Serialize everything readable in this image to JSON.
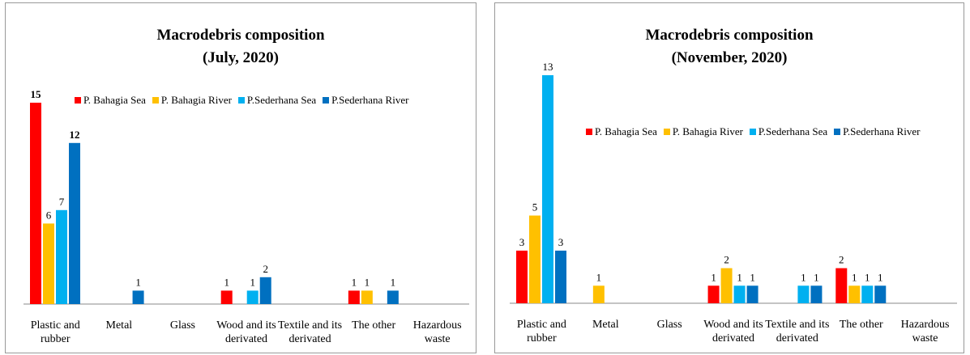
{
  "chart_data": [
    {
      "type": "bar",
      "title": "Macrodebris composition",
      "subtitle": "(July, 2020)",
      "categories": [
        "Plastic and rubber",
        "Metal",
        "Glass",
        "Wood and its derivated",
        "Textile and its derivated",
        "The other",
        "Hazardous waste"
      ],
      "series": [
        {
          "name": "P. Bahagia Sea",
          "color": "#ff0000",
          "values": [
            15,
            0,
            0,
            1,
            0,
            1,
            0
          ]
        },
        {
          "name": "P. Bahagia River",
          "color": "#ffc000",
          "values": [
            6,
            0,
            0,
            0,
            0,
            1,
            0
          ]
        },
        {
          "name": "P.Sederhana Sea",
          "color": "#00b0f0",
          "values": [
            7,
            0,
            0,
            1,
            0,
            0,
            0
          ]
        },
        {
          "name": "P.Sederhana River",
          "color": "#0070c0",
          "values": [
            12,
            1,
            0,
            2,
            0,
            1,
            0
          ]
        }
      ]
    },
    {
      "type": "bar",
      "title": "Macrodebris composition",
      "subtitle": "(November, 2020)",
      "categories": [
        "Plastic and rubber",
        "Metal",
        "Glass",
        "Wood and its derivated",
        "Textile and its derivated",
        "The other",
        "Hazardous waste"
      ],
      "series": [
        {
          "name": "P. Bahagia Sea",
          "color": "#ff0000",
          "values": [
            3,
            0,
            0,
            1,
            0,
            2,
            0
          ]
        },
        {
          "name": "P. Bahagia River",
          "color": "#ffc000",
          "values": [
            5,
            1,
            0,
            2,
            0,
            1,
            0
          ]
        },
        {
          "name": "P.Sederhana Sea",
          "color": "#00b0f0",
          "values": [
            13,
            0,
            0,
            1,
            1,
            1,
            0
          ]
        },
        {
          "name": "P.Sederhana River",
          "color": "#0070c0",
          "values": [
            3,
            0,
            0,
            1,
            1,
            1,
            0
          ]
        }
      ]
    }
  ]
}
